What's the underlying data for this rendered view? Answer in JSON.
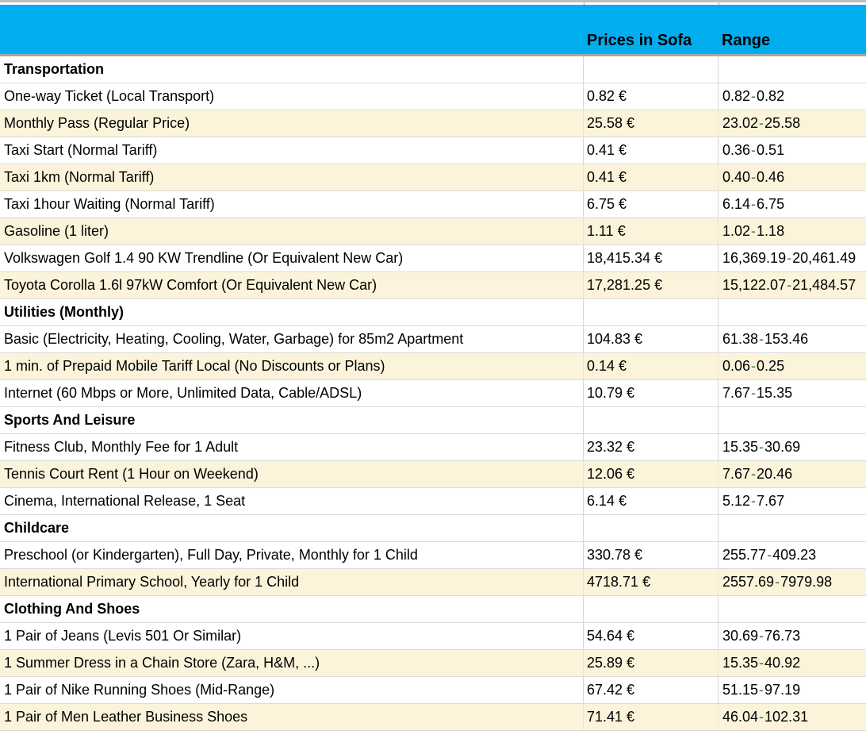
{
  "colors": {
    "header_bg": "#00aeef",
    "stripe_bg": "#fcf3db",
    "gridline": "#d9d9d9",
    "divider": "#a9a9a9",
    "divider_on_white": "#d4d4d4",
    "top_line": "#bfbfbf",
    "header_border": "#a6a6a6",
    "range_dash": "#2e7d32"
  },
  "range_separator": "-",
  "header": {
    "col_item": "",
    "col_price": "Prices in Sofa",
    "col_range": "Range"
  },
  "rows": [
    {
      "type": "section",
      "label": "Transportation",
      "price": "",
      "range_min": "",
      "range_max": "",
      "shaded": false
    },
    {
      "type": "item",
      "label": "One-way Ticket (Local Transport)",
      "price": "0.82 €",
      "range_min": "0.82",
      "range_max": "0.82",
      "shaded": false
    },
    {
      "type": "item",
      "label": "Monthly Pass (Regular Price)",
      "price": "25.58 €",
      "range_min": "23.02",
      "range_max": "25.58",
      "shaded": true
    },
    {
      "type": "item",
      "label": "Taxi Start (Normal Tariff)",
      "price": "0.41 €",
      "range_min": "0.36",
      "range_max": "0.51",
      "shaded": false
    },
    {
      "type": "item",
      "label": "Taxi 1km (Normal Tariff)",
      "price": "0.41 €",
      "range_min": "0.40",
      "range_max": "0.46",
      "shaded": true
    },
    {
      "type": "item",
      "label": "Taxi 1hour Waiting (Normal Tariff)",
      "price": "6.75 €",
      "range_min": "6.14",
      "range_max": "6.75",
      "shaded": false
    },
    {
      "type": "item",
      "label": "Gasoline (1 liter)",
      "price": "1.11 €",
      "range_min": "1.02",
      "range_max": "1.18",
      "shaded": true
    },
    {
      "type": "item",
      "label": "Volkswagen Golf 1.4 90 KW Trendline (Or Equivalent New Car)",
      "price": "18,415.34 €",
      "range_min": "16,369.19",
      "range_max": "20,461.49",
      "shaded": false
    },
    {
      "type": "item",
      "label": "Toyota Corolla 1.6l 97kW Comfort (Or Equivalent New Car)",
      "price": "17,281.25 €",
      "range_min": "15,122.07",
      "range_max": "21,484.57",
      "shaded": true
    },
    {
      "type": "section",
      "label": "Utilities (Monthly)",
      "price": "",
      "range_min": "",
      "range_max": "",
      "shaded": false
    },
    {
      "type": "item",
      "label": "Basic (Electricity, Heating, Cooling, Water, Garbage) for 85m2 Apartment",
      "price": "104.83 €",
      "range_min": "61.38",
      "range_max": "153.46",
      "shaded": false
    },
    {
      "type": "item",
      "label": "1 min. of Prepaid Mobile Tariff Local (No Discounts or Plans)",
      "price": "0.14 €",
      "range_min": "0.06",
      "range_max": "0.25",
      "shaded": true
    },
    {
      "type": "item",
      "label": "Internet (60 Mbps or More, Unlimited Data, Cable/ADSL)",
      "price": "10.79 €",
      "range_min": "7.67",
      "range_max": "15.35",
      "shaded": false
    },
    {
      "type": "section",
      "label": "Sports And Leisure",
      "price": "",
      "range_min": "",
      "range_max": "",
      "shaded": false
    },
    {
      "type": "item",
      "label": "Fitness Club, Monthly Fee for 1 Adult",
      "price": "23.32 €",
      "range_min": "15.35",
      "range_max": "30.69",
      "shaded": false
    },
    {
      "type": "item",
      "label": "Tennis Court Rent (1 Hour on Weekend)",
      "price": "12.06 €",
      "range_min": "7.67",
      "range_max": "20.46",
      "shaded": true
    },
    {
      "type": "item",
      "label": "Cinema, International Release, 1 Seat",
      "price": "6.14 €",
      "range_min": "5.12",
      "range_max": "7.67",
      "shaded": false
    },
    {
      "type": "section",
      "label": "Childcare",
      "price": "",
      "range_min": "",
      "range_max": "",
      "shaded": false
    },
    {
      "type": "item",
      "label": "Preschool (or Kindergarten), Full Day, Private, Monthly for 1 Child",
      "price": "330.78 €",
      "range_min": "255.77",
      "range_max": "409.23",
      "shaded": false
    },
    {
      "type": "item",
      "label": "International Primary School, Yearly for 1 Child",
      "price": "4718.71 €",
      "range_min": "2557.69",
      "range_max": "7979.98",
      "shaded": true
    },
    {
      "type": "section",
      "label": "Clothing And Shoes",
      "price": "",
      "range_min": "",
      "range_max": "",
      "shaded": false
    },
    {
      "type": "item",
      "label": "1 Pair of Jeans (Levis 501 Or Similar)",
      "price": "54.64 €",
      "range_min": "30.69",
      "range_max": "76.73",
      "shaded": false
    },
    {
      "type": "item",
      "label": "1 Summer Dress in a Chain Store (Zara, H&M, ...)",
      "price": "25.89 €",
      "range_min": "15.35",
      "range_max": "40.92",
      "shaded": true
    },
    {
      "type": "item",
      "label": "1 Pair of Nike Running Shoes (Mid-Range)",
      "price": "67.42 €",
      "range_min": "51.15",
      "range_max": "97.19",
      "shaded": false
    },
    {
      "type": "item",
      "label": "1 Pair of Men Leather Business Shoes",
      "price": "71.41 €",
      "range_min": "46.04",
      "range_max": "102.31",
      "shaded": true
    }
  ]
}
